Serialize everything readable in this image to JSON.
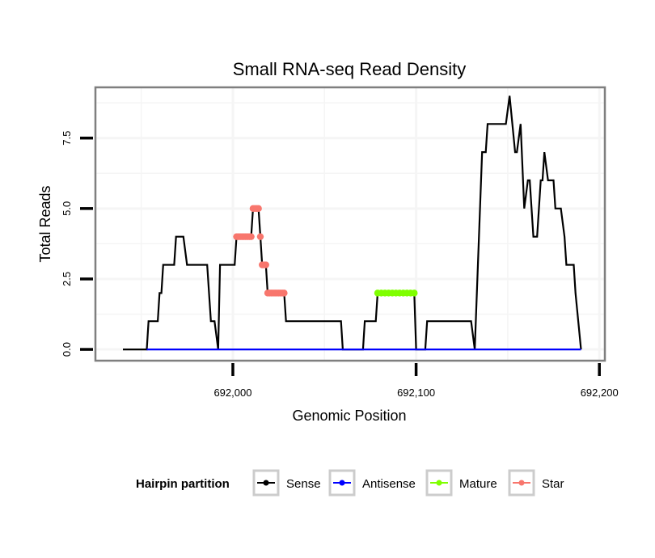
{
  "chart_data": {
    "type": "line",
    "title": "Small RNA-seq Read Density",
    "xlabel": "Genomic Position",
    "ylabel": "Total Reads",
    "xlim": [
      691925,
      692203
    ],
    "ylim": [
      -0.4,
      9.3
    ],
    "x_ticks": [
      692000,
      692100,
      692200
    ],
    "x_tick_labels": [
      "692,000",
      "692,100",
      "692,200"
    ],
    "y_ticks": [
      0,
      2.5,
      5,
      7.5
    ],
    "y_tick_labels": [
      "0.0",
      "2.5",
      "5.0",
      "7.5"
    ],
    "grid": true,
    "legend": {
      "title": "Hairpin partition",
      "position": "bottom",
      "entries": [
        "Sense",
        "Antisense",
        "Mature",
        "Star"
      ]
    },
    "series": [
      {
        "name": "Sense",
        "color": "#000000",
        "points": [
          [
            691940,
            0
          ],
          [
            691953,
            0
          ],
          [
            691954,
            1
          ],
          [
            691959,
            1
          ],
          [
            691960,
            2
          ],
          [
            691961,
            2
          ],
          [
            691962,
            3
          ],
          [
            691968,
            3
          ],
          [
            691969,
            4
          ],
          [
            691973,
            4
          ],
          [
            691975,
            3
          ],
          [
            691986,
            3
          ],
          [
            691988,
            1
          ],
          [
            691990,
            1
          ],
          [
            691992,
            0
          ],
          [
            691993,
            3
          ],
          [
            692001,
            3
          ],
          [
            692002,
            4
          ],
          [
            692010,
            4
          ],
          [
            692011,
            5
          ],
          [
            692014,
            5
          ],
          [
            692015,
            4
          ],
          [
            692016,
            3
          ],
          [
            692018,
            3
          ],
          [
            692019,
            2
          ],
          [
            692028,
            2
          ],
          [
            692029,
            1
          ],
          [
            692059,
            1
          ],
          [
            692060,
            0
          ],
          [
            692071,
            0
          ],
          [
            692072,
            1
          ],
          [
            692078,
            1
          ],
          [
            692079,
            2
          ],
          [
            692099,
            2
          ],
          [
            692100,
            0
          ],
          [
            692105,
            0
          ],
          [
            692106,
            1
          ],
          [
            692130,
            1
          ],
          [
            692132,
            0
          ],
          [
            692136,
            7
          ],
          [
            692138,
            7
          ],
          [
            692139,
            8
          ],
          [
            692149,
            8
          ],
          [
            692151,
            9
          ],
          [
            692154,
            7
          ],
          [
            692155,
            7
          ],
          [
            692157,
            8
          ],
          [
            692159,
            5
          ],
          [
            692161,
            6
          ],
          [
            692162,
            6
          ],
          [
            692164,
            4
          ],
          [
            692166,
            4
          ],
          [
            692168,
            6
          ],
          [
            692169,
            6
          ],
          [
            692170,
            7
          ],
          [
            692172,
            6
          ],
          [
            692175,
            6
          ],
          [
            692176,
            5
          ],
          [
            692179,
            5
          ],
          [
            692181,
            4
          ],
          [
            692182,
            3
          ],
          [
            692186,
            3
          ],
          [
            692187,
            2
          ],
          [
            692190,
            0
          ]
        ]
      },
      {
        "name": "Antisense",
        "color": "#0000ff",
        "points": [
          [
            691953,
            0
          ],
          [
            692190,
            0
          ]
        ]
      },
      {
        "name": "Mature",
        "color": "#7fff00",
        "points": [
          [
            692079,
            2
          ],
          [
            692081,
            2
          ],
          [
            692083,
            2
          ],
          [
            692085,
            2
          ],
          [
            692087,
            2
          ],
          [
            692089,
            2
          ],
          [
            692091,
            2
          ],
          [
            692093,
            2
          ],
          [
            692095,
            2
          ],
          [
            692097,
            2
          ],
          [
            692099,
            2
          ]
        ]
      },
      {
        "name": "Star",
        "color": "#f8766d",
        "points": [
          [
            692002,
            4
          ],
          [
            692003,
            4
          ],
          [
            692004,
            4
          ],
          [
            692005,
            4
          ],
          [
            692006,
            4
          ],
          [
            692007,
            4
          ],
          [
            692008,
            4
          ],
          [
            692009,
            4
          ],
          [
            692010,
            4
          ],
          [
            692011,
            5
          ],
          [
            692012,
            5
          ],
          [
            692013,
            5
          ],
          [
            692014,
            5
          ],
          [
            692015,
            4
          ],
          [
            692016,
            3
          ],
          [
            692017,
            3
          ],
          [
            692018,
            3
          ],
          [
            692019,
            2
          ],
          [
            692020,
            2
          ],
          [
            692021,
            2
          ],
          [
            692022,
            2
          ],
          [
            692023,
            2
          ],
          [
            692024,
            2
          ],
          [
            692025,
            2
          ],
          [
            692026,
            2
          ],
          [
            692027,
            2
          ],
          [
            692028,
            2
          ]
        ]
      }
    ]
  }
}
